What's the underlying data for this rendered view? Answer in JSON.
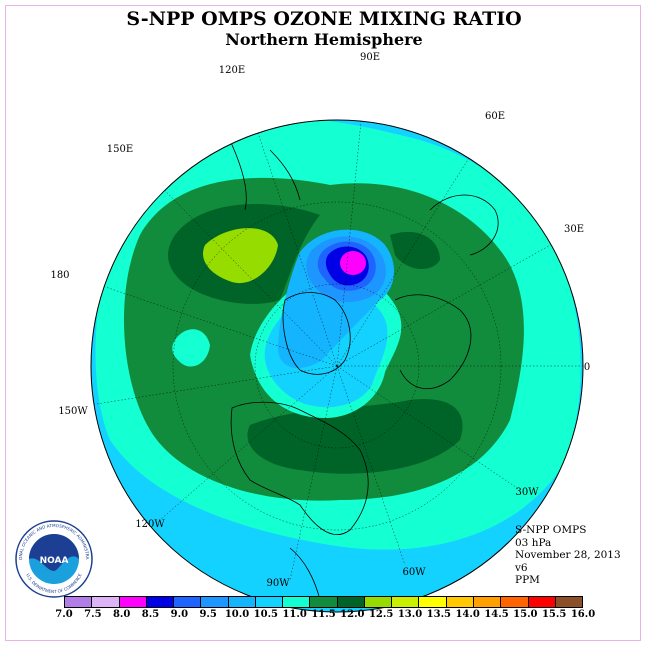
{
  "title": "S-NPP OMPS OZONE MIXING RATIO",
  "subtitle": "Northern Hemisphere",
  "longitude_labels": [
    "90E",
    "60E",
    "30E",
    "0",
    "30W",
    "60W",
    "90W",
    "120W",
    "150W",
    "180",
    "150E",
    "120E"
  ],
  "info": {
    "instrument": "S-NPP OMPS",
    "pressure": "03 hPa",
    "date": "November 28, 2013",
    "version": "v6",
    "units": "PPM"
  },
  "logo": {
    "name": "NOAA",
    "ring_text": "NATIONAL OCEANIC AND ATMOSPHERIC ADMINISTRATION",
    "ring_text_bottom": "U.S. DEPARTMENT OF COMMERCE"
  },
  "color_scale": {
    "labels": [
      "7.0",
      "7.5",
      "8.0",
      "8.5",
      "9.0",
      "9.5",
      "10.0",
      "10.5",
      "11.0",
      "11.5",
      "12.0",
      "12.5",
      "13.0",
      "13.5",
      "14.0",
      "14.5",
      "15.0",
      "15.5",
      "16.0"
    ],
    "colors": [
      "#b27de8",
      "#dcb4f5",
      "#ff00ff",
      "#0000e6",
      "#1e64ff",
      "#1e96ff",
      "#14b4ff",
      "#14d2ff",
      "#14ffd2",
      "#118c3c",
      "#006428",
      "#96dc00",
      "#c8f000",
      "#ffff00",
      "#ffc800",
      "#ffa000",
      "#ff6400",
      "#ff0000",
      "#8c5028"
    ]
  }
}
